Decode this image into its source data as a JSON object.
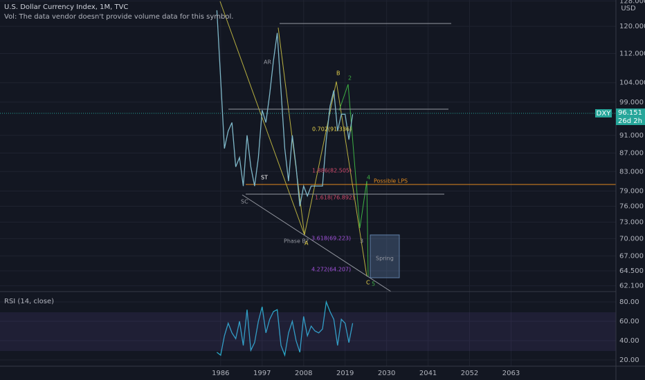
{
  "chart_data": [
    {
      "type": "line",
      "title": "U.S. Dollar Currency Index, 1M, TVC",
      "subtitle": "Vol: The data vendor doesn't provide volume data for this symbol.",
      "currency": "USD",
      "symbol": "DXY",
      "last_value": 96.151,
      "countdown": "26d 2h",
      "log_scale": true,
      "grid": true,
      "x": [
        1985,
        1986,
        1987,
        1988,
        1989,
        1990,
        1991,
        1992,
        1993,
        1994,
        1995,
        1996,
        1997,
        1998,
        1999,
        2000,
        2001,
        2002,
        2003,
        2004,
        2005,
        2006,
        2007,
        2008,
        2009,
        2010,
        2011,
        2012,
        2013,
        2014,
        2015,
        2016,
        2017,
        2018,
        2019,
        2020,
        2021
      ],
      "series": [
        {
          "name": "DXY",
          "color": "#7fb8c9",
          "values": [
            125,
            105,
            88,
            92,
            94,
            84,
            86,
            80,
            91,
            84,
            80,
            86,
            97,
            94,
            101,
            110,
            118,
            102,
            88,
            81,
            91,
            84,
            76,
            80,
            78,
            80,
            80,
            80,
            80,
            90,
            98,
            102,
            92,
            96,
            96,
            90,
            96
          ]
        }
      ],
      "xlim": [
        1927.5,
        2090.8
      ],
      "xticks": [
        1986,
        1997,
        2008,
        2019,
        2030,
        2041,
        2052,
        2063
      ],
      "ylim": [
        61.2,
        128.3
      ],
      "yticks": [
        {
          "value": 62.1,
          "label": "62.100"
        },
        {
          "value": 64.5,
          "label": "64.500"
        },
        {
          "value": 67,
          "label": "67.000"
        },
        {
          "value": 70,
          "label": "70.000"
        },
        {
          "value": 73,
          "label": "73.000"
        },
        {
          "value": 76,
          "label": "76.000"
        },
        {
          "value": 79,
          "label": "79.000"
        },
        {
          "value": 83,
          "label": "83.000"
        },
        {
          "value": 87,
          "label": "87.000"
        },
        {
          "value": 91,
          "label": "91.000"
        },
        {
          "value": 99,
          "label": "99.000"
        },
        {
          "value": 104,
          "label": "104.000"
        },
        {
          "value": 112,
          "label": "112.000"
        },
        {
          "value": 120,
          "label": "120.000"
        },
        {
          "value": 128,
          "label": "128.000"
        }
      ],
      "annotations": [
        "B",
        "2",
        "AR",
        "ST",
        "SC",
        "Phase B?",
        "A",
        "C",
        "5",
        "4",
        "3",
        "Possible LPS",
        "Spring",
        "0.702(91.336)",
        "1.886(82.505)",
        "1.618(76.892)",
        "3.618(69.223)",
        "4.272(64.207)"
      ]
    },
    {
      "type": "line",
      "title": "RSI (14, close)",
      "x": [
        1985,
        1986,
        1987,
        1988,
        1989,
        1990,
        1991,
        1992,
        1993,
        1994,
        1995,
        1996,
        1997,
        1998,
        1999,
        2000,
        2001,
        2002,
        2003,
        2004,
        2005,
        2006,
        2007,
        2008,
        2009,
        2010,
        2011,
        2012,
        2013,
        2014,
        2015,
        2016,
        2017,
        2018,
        2019,
        2020,
        2021
      ],
      "series": [
        {
          "name": "RSI",
          "color": "#2aa8c8",
          "values": [
            28,
            25,
            45,
            58,
            48,
            42,
            60,
            35,
            72,
            30,
            38,
            60,
            75,
            48,
            62,
            70,
            72,
            35,
            25,
            48,
            60,
            40,
            28,
            65,
            45,
            55,
            50,
            48,
            52,
            80,
            70,
            62,
            35,
            62,
            58,
            38,
            58
          ]
        }
      ],
      "ylim": [
        13.6,
        90.7
      ],
      "yticks": [
        {
          "value": 20,
          "label": "20.00"
        },
        {
          "value": 40,
          "label": "40.00"
        },
        {
          "value": 60,
          "label": "60.00"
        },
        {
          "value": 80,
          "label": "80.00"
        }
      ]
    }
  ]
}
